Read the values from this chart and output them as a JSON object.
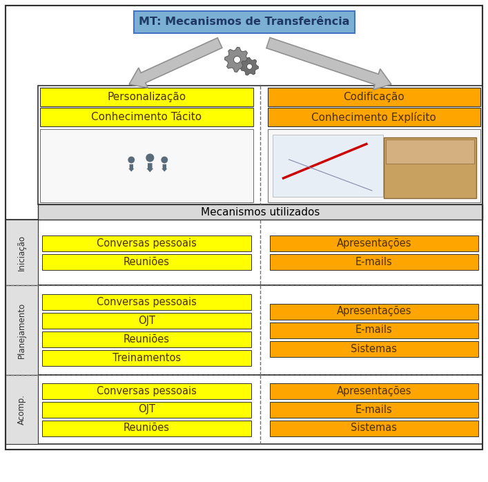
{
  "title": "MT: Mecanismos de Transferência",
  "title_bg": "#7BAFD4",
  "title_border": "#4472C4",
  "mecanismos_label": "Mecanismos utilizados",
  "mecanismos_bg": "#D9D9D9",
  "left_col_header": "Personalização",
  "left_col_sub": "Conhecimento Tácito",
  "right_col_header": "Codificação",
  "right_col_sub": "Conhecimento Explícito",
  "yellow": "#FFFF00",
  "orange": "#FFA500",
  "text_dark": "#4D3000",
  "white": "#FFFFFF",
  "light_gray": "#E0E0E0",
  "mid_gray": "#A0A0A0",
  "border_color": "#303030",
  "dashed_color": "#707070",
  "arrow_fill": "#C0C0C0",
  "arrow_edge": "#909090",
  "rows": [
    {
      "label": "Iniciação",
      "left_items": [
        "Conversas pessoais",
        "Reuniões"
      ],
      "right_items": [
        "Apresentações",
        "E-mails"
      ]
    },
    {
      "label": "Planejamento",
      "left_items": [
        "Conversas pessoais",
        "OJT",
        "Reuniões",
        "Treinamentos"
      ],
      "right_items": [
        "Apresentações",
        "E-mails",
        "Sistemas"
      ]
    },
    {
      "label": "Acomp.",
      "left_items": [
        "Conversas pessoais",
        "OJT",
        "Reuniões"
      ],
      "right_items": [
        "Apresentações",
        "E-mails",
        "Sistemas"
      ]
    }
  ]
}
